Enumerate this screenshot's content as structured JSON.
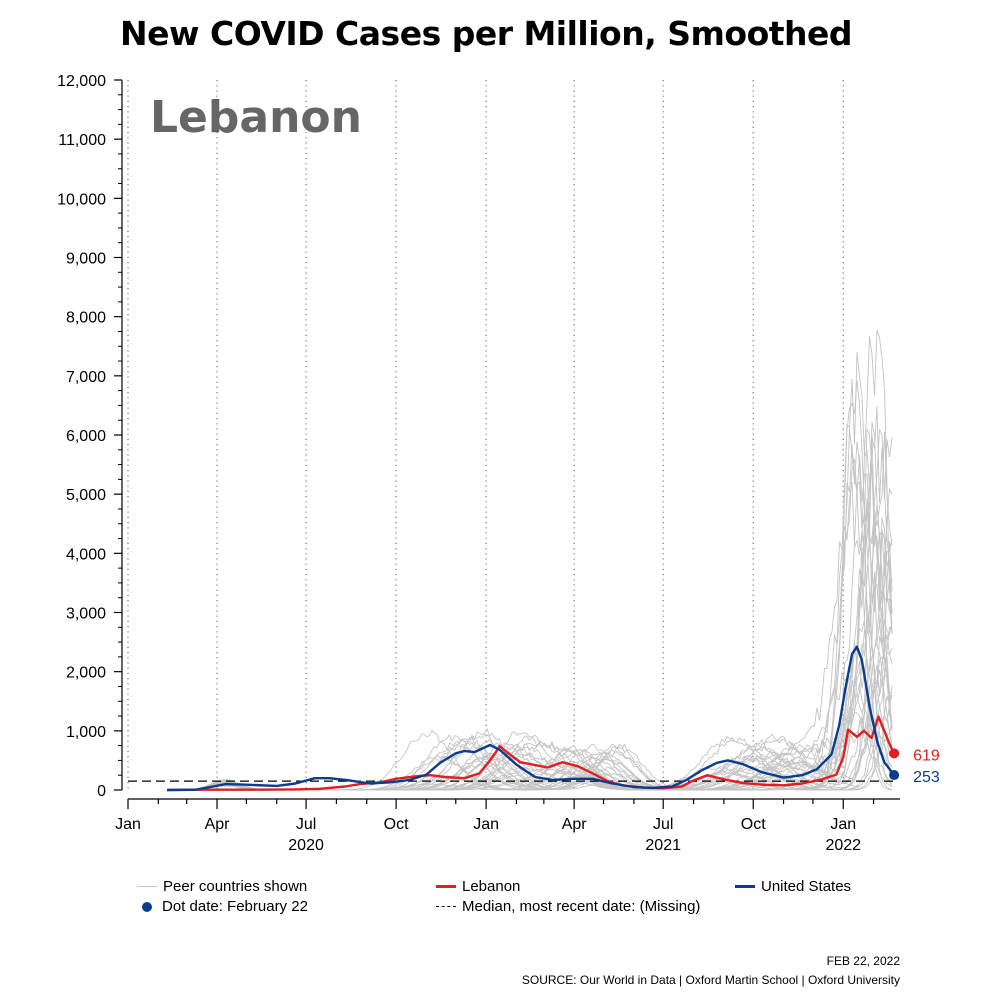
{
  "title": "New COVID Cases per Million, Smoothed",
  "country_label": "Lebanon",
  "colors": {
    "peer": "#c4c4c4",
    "lebanon": "#e02020",
    "united_states": "#0b3d8c",
    "median": "#000000"
  },
  "legend": {
    "peer": "Peer countries shown",
    "lebanon": "Lebanon",
    "us": "United States",
    "dot": "Dot date: February 22",
    "median": "Median, most recent date: (Missing)"
  },
  "footer": {
    "date": "FEB 22, 2022",
    "source": "SOURCE: Our World in Data | Oxford Martin School | Oxford University"
  },
  "chart_data": {
    "type": "line",
    "title": "New COVID Cases per Million, Smoothed",
    "xlabel": "",
    "ylabel": "",
    "x_range": [
      "2020-01-01",
      "2022-02-28"
    ],
    "ylim": [
      0,
      12000
    ],
    "y_ticks": [
      0,
      1000,
      2000,
      3000,
      4000,
      5000,
      6000,
      7000,
      8000,
      9000,
      10000,
      11000,
      12000
    ],
    "y_tick_labels": [
      "0",
      "1,000",
      "2,000",
      "3,000",
      "4,000",
      "5,000",
      "6,000",
      "7,000",
      "8,000",
      "9,000",
      "10,000",
      "11,000",
      "12,000"
    ],
    "x_ticks": [
      {
        "date": "2020-01-01",
        "label": "Jan"
      },
      {
        "date": "2020-04-01",
        "label": "Apr"
      },
      {
        "date": "2020-07-01",
        "label": "Jul"
      },
      {
        "date": "2020-10-01",
        "label": "Oct"
      },
      {
        "date": "2021-01-01",
        "label": "Jan"
      },
      {
        "date": "2021-04-01",
        "label": "Apr"
      },
      {
        "date": "2021-07-01",
        "label": "Jul"
      },
      {
        "date": "2021-10-01",
        "label": "Oct"
      },
      {
        "date": "2022-01-01",
        "label": "Jan"
      }
    ],
    "year_labels": [
      {
        "date": "2020-07-01",
        "label": "2020"
      },
      {
        "date": "2021-07-01",
        "label": "2021"
      },
      {
        "date": "2022-01-01",
        "label": "2022"
      }
    ],
    "grid": "vertical dotted at x ticks",
    "median_line": 150,
    "series": [
      {
        "name": "Lebanon",
        "color": "#e02020",
        "end_label": "619",
        "points": [
          [
            "2020-02-10",
            0
          ],
          [
            "2020-03-15",
            5
          ],
          [
            "2020-05-01",
            5
          ],
          [
            "2020-06-20",
            10
          ],
          [
            "2020-07-15",
            20
          ],
          [
            "2020-08-10",
            60
          ],
          [
            "2020-08-25",
            100
          ],
          [
            "2020-09-15",
            130
          ],
          [
            "2020-10-01",
            190
          ],
          [
            "2020-10-20",
            230
          ],
          [
            "2020-11-05",
            250
          ],
          [
            "2020-11-20",
            220
          ],
          [
            "2020-12-10",
            200
          ],
          [
            "2020-12-25",
            280
          ],
          [
            "2021-01-05",
            500
          ],
          [
            "2021-01-15",
            740
          ],
          [
            "2021-01-22",
            640
          ],
          [
            "2021-02-05",
            470
          ],
          [
            "2021-02-20",
            420
          ],
          [
            "2021-03-05",
            380
          ],
          [
            "2021-03-20",
            470
          ],
          [
            "2021-04-05",
            400
          ],
          [
            "2021-04-20",
            280
          ],
          [
            "2021-05-05",
            150
          ],
          [
            "2021-05-20",
            80
          ],
          [
            "2021-06-10",
            40
          ],
          [
            "2021-07-01",
            30
          ],
          [
            "2021-07-20",
            60
          ],
          [
            "2021-08-01",
            160
          ],
          [
            "2021-08-15",
            250
          ],
          [
            "2021-09-01",
            180
          ],
          [
            "2021-09-20",
            120
          ],
          [
            "2021-10-10",
            90
          ],
          [
            "2021-11-01",
            80
          ],
          [
            "2021-11-20",
            110
          ],
          [
            "2021-12-10",
            180
          ],
          [
            "2021-12-25",
            260
          ],
          [
            "2022-01-01",
            550
          ],
          [
            "2022-01-06",
            1020
          ],
          [
            "2022-01-15",
            900
          ],
          [
            "2022-01-22",
            1000
          ],
          [
            "2022-01-30",
            880
          ],
          [
            "2022-02-06",
            1240
          ],
          [
            "2022-02-12",
            1000
          ],
          [
            "2022-02-18",
            750
          ],
          [
            "2022-02-22",
            619
          ]
        ]
      },
      {
        "name": "United States",
        "color": "#0b3d8c",
        "end_label": "253",
        "points": [
          [
            "2020-02-10",
            0
          ],
          [
            "2020-03-10",
            5
          ],
          [
            "2020-03-25",
            50
          ],
          [
            "2020-04-10",
            100
          ],
          [
            "2020-05-01",
            90
          ],
          [
            "2020-06-01",
            70
          ],
          [
            "2020-06-20",
            110
          ],
          [
            "2020-07-10",
            200
          ],
          [
            "2020-07-25",
            200
          ],
          [
            "2020-08-15",
            160
          ],
          [
            "2020-09-05",
            110
          ],
          [
            "2020-09-25",
            130
          ],
          [
            "2020-10-15",
            170
          ],
          [
            "2020-11-01",
            260
          ],
          [
            "2020-11-15",
            460
          ],
          [
            "2020-12-01",
            620
          ],
          [
            "2020-12-10",
            660
          ],
          [
            "2020-12-20",
            640
          ],
          [
            "2021-01-05",
            760
          ],
          [
            "2021-01-15",
            680
          ],
          [
            "2021-02-01",
            430
          ],
          [
            "2021-02-20",
            220
          ],
          [
            "2021-03-10",
            170
          ],
          [
            "2021-04-01",
            190
          ],
          [
            "2021-04-20",
            190
          ],
          [
            "2021-05-10",
            110
          ],
          [
            "2021-06-01",
            50
          ],
          [
            "2021-06-20",
            35
          ],
          [
            "2021-07-10",
            60
          ],
          [
            "2021-07-25",
            170
          ],
          [
            "2021-08-10",
            340
          ],
          [
            "2021-08-25",
            460
          ],
          [
            "2021-09-05",
            500
          ],
          [
            "2021-09-20",
            440
          ],
          [
            "2021-10-10",
            300
          ],
          [
            "2021-11-01",
            210
          ],
          [
            "2021-11-20",
            250
          ],
          [
            "2021-12-05",
            350
          ],
          [
            "2021-12-20",
            600
          ],
          [
            "2021-12-28",
            1100
          ],
          [
            "2022-01-03",
            1700
          ],
          [
            "2022-01-10",
            2300
          ],
          [
            "2022-01-15",
            2420
          ],
          [
            "2022-01-20",
            2200
          ],
          [
            "2022-01-28",
            1400
          ],
          [
            "2022-02-05",
            800
          ],
          [
            "2022-02-12",
            470
          ],
          [
            "2022-02-22",
            253
          ]
        ]
      }
    ]
  }
}
